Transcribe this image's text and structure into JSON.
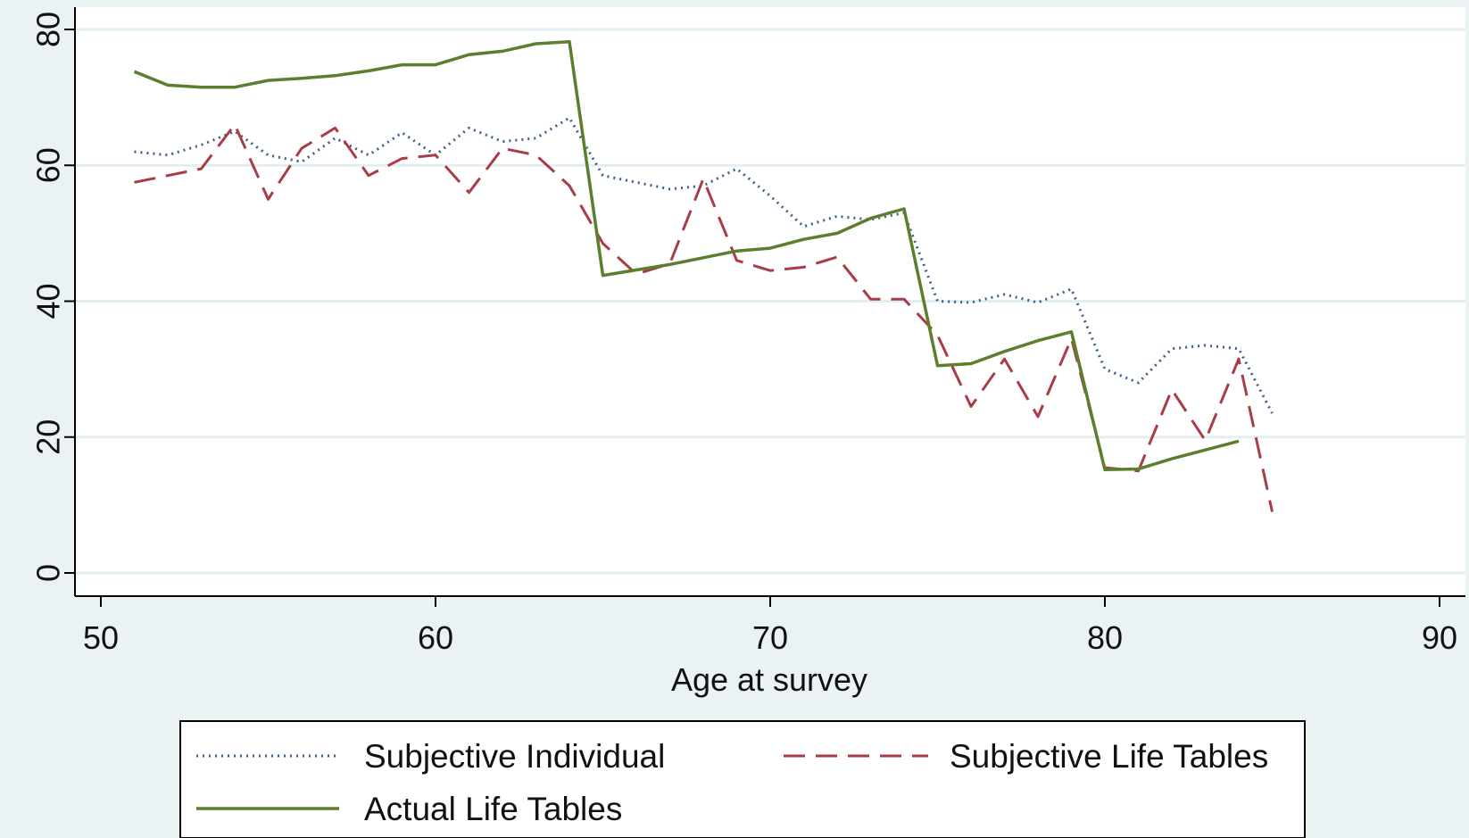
{
  "chart_data": {
    "type": "line",
    "xlabel": "Age at survey",
    "ylabel": "",
    "xlim": [
      50,
      90
    ],
    "ylim": [
      0,
      80
    ],
    "xticks": [
      50,
      60,
      70,
      80,
      90
    ],
    "yticks": [
      0,
      20,
      40,
      60,
      80
    ],
    "grid": "horizontal",
    "legend": "bottom",
    "series": [
      {
        "name": "Subjective Individual",
        "style": "dotted",
        "color": "#3b5f8a",
        "x": [
          51,
          52,
          53,
          54,
          55,
          56,
          57,
          58,
          59,
          60,
          61,
          62,
          63,
          64,
          65,
          66,
          67,
          68,
          69,
          70,
          71,
          72,
          73,
          74,
          75,
          76,
          77,
          78,
          79,
          80,
          81,
          82,
          83,
          84,
          85
        ],
        "values": [
          62,
          61.5,
          63,
          65,
          61.5,
          60.5,
          64,
          61.5,
          64.8,
          61.5,
          65.5,
          63.5,
          64,
          67,
          58.5,
          57.5,
          56.5,
          57,
          59.5,
          55.5,
          51,
          52.5,
          52,
          53,
          40,
          39.8,
          41,
          39.8,
          41.8,
          30,
          28,
          33,
          33.5,
          33,
          23.5
        ]
      },
      {
        "name": "Subjective Life Tables",
        "style": "dashed",
        "color": "#a83d46",
        "x": [
          51,
          52,
          53,
          54,
          55,
          56,
          57,
          58,
          59,
          60,
          61,
          62,
          63,
          64,
          65,
          66,
          67,
          68,
          69,
          70,
          71,
          72,
          73,
          74,
          75,
          76,
          77,
          78,
          79,
          80,
          81,
          82,
          83,
          84,
          85
        ],
        "values": [
          57.5,
          58.5,
          59.5,
          66,
          55,
          62.5,
          65.5,
          58.5,
          61,
          61.5,
          56,
          62.5,
          61.5,
          57,
          48.5,
          44,
          45.5,
          58,
          46,
          44.5,
          45,
          46.5,
          40.3,
          40.3,
          35,
          24.5,
          31.5,
          23,
          34.5,
          15.5,
          15,
          27,
          19.5,
          31.5,
          9
        ]
      },
      {
        "name": "Actual Life Tables",
        "style": "solid",
        "color": "#5c7f2e",
        "x": [
          51,
          52,
          53,
          54,
          55,
          56,
          57,
          58,
          59,
          60,
          61,
          62,
          63,
          64,
          65,
          66,
          67,
          68,
          69,
          70,
          71,
          72,
          73,
          74,
          75,
          76,
          77,
          78,
          79,
          80,
          81,
          82,
          83,
          84
        ],
        "values": [
          73.8,
          71.8,
          71.5,
          71.5,
          72.5,
          72.8,
          73.2,
          73.9,
          74.8,
          74.8,
          76.3,
          76.8,
          77.9,
          78.2,
          43.8,
          44.6,
          45.4,
          46.4,
          47.4,
          47.8,
          49.1,
          50,
          52.2,
          53.6,
          30.5,
          30.8,
          32.6,
          34.2,
          35.5,
          15.2,
          15.3,
          16.8,
          18.1,
          19.4
        ]
      }
    ]
  }
}
